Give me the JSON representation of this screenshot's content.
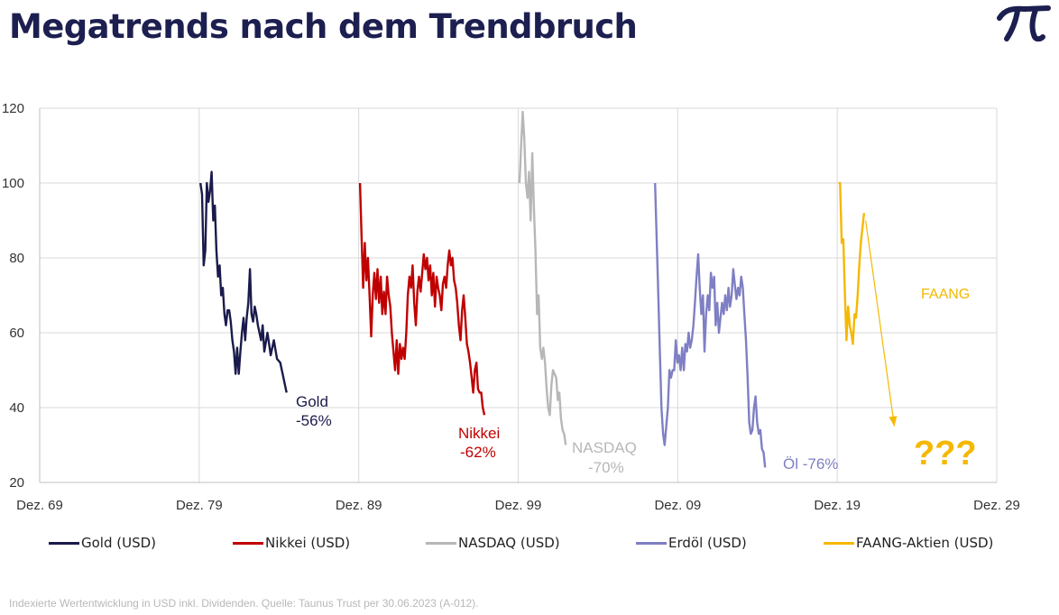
{
  "header": {
    "title": "Megatrends nach dem Trendbruch",
    "logo_icon": "pi-logo-icon",
    "logo_color": "#1c1f4f"
  },
  "chart_data": {
    "type": "line",
    "title": "",
    "xlabel": "",
    "ylabel": "",
    "x_ticks": [
      "Dez. 69",
      "Dez. 79",
      "Dez. 89",
      "Dez. 99",
      "Dez. 09",
      "Dez. 19",
      "Dez. 29"
    ],
    "xlim": [
      1969.92,
      2029.92
    ],
    "y_ticks": [
      20,
      40,
      60,
      80,
      100,
      120
    ],
    "ylim": [
      20,
      120
    ],
    "grid": true,
    "legend_position": "bottom",
    "series": [
      {
        "name": "Gold (USD)",
        "color": "#1a1b4b",
        "points": [
          [
            1980.0,
            100
          ],
          [
            1980.1,
            97
          ],
          [
            1980.2,
            78
          ],
          [
            1980.3,
            82
          ],
          [
            1980.4,
            100
          ],
          [
            1980.5,
            95
          ],
          [
            1980.6,
            98
          ],
          [
            1980.7,
            103
          ],
          [
            1980.8,
            90
          ],
          [
            1980.9,
            94
          ],
          [
            1981.0,
            82
          ],
          [
            1981.1,
            75
          ],
          [
            1981.2,
            78
          ],
          [
            1981.3,
            70
          ],
          [
            1981.4,
            72
          ],
          [
            1981.5,
            65
          ],
          [
            1981.6,
            62
          ],
          [
            1981.7,
            66
          ],
          [
            1981.8,
            66
          ],
          [
            1981.9,
            63
          ],
          [
            1982.0,
            58
          ],
          [
            1982.1,
            55
          ],
          [
            1982.2,
            49
          ],
          [
            1982.3,
            56
          ],
          [
            1982.4,
            49
          ],
          [
            1982.5,
            55
          ],
          [
            1982.6,
            60
          ],
          [
            1982.7,
            64
          ],
          [
            1982.8,
            58
          ],
          [
            1982.9,
            64
          ],
          [
            1983.0,
            68
          ],
          [
            1983.1,
            77
          ],
          [
            1983.2,
            65
          ],
          [
            1983.3,
            63
          ],
          [
            1983.4,
            67
          ],
          [
            1983.5,
            65
          ],
          [
            1983.6,
            62
          ],
          [
            1983.8,
            58
          ],
          [
            1983.9,
            62
          ],
          [
            1984.0,
            55
          ],
          [
            1984.2,
            60
          ],
          [
            1984.4,
            54
          ],
          [
            1984.6,
            58
          ],
          [
            1984.8,
            53
          ],
          [
            1985.0,
            52
          ],
          [
            1985.2,
            48
          ],
          [
            1985.4,
            44
          ]
        ]
      },
      {
        "name": "Nikkei (USD)",
        "color": "#c00000",
        "points": [
          [
            1990.0,
            100
          ],
          [
            1990.1,
            86
          ],
          [
            1990.2,
            72
          ],
          [
            1990.3,
            84
          ],
          [
            1990.4,
            74
          ],
          [
            1990.5,
            80
          ],
          [
            1990.6,
            70
          ],
          [
            1990.7,
            59
          ],
          [
            1990.8,
            70
          ],
          [
            1990.9,
            76
          ],
          [
            1991.0,
            69
          ],
          [
            1991.1,
            77
          ],
          [
            1991.2,
            68
          ],
          [
            1991.3,
            75
          ],
          [
            1991.4,
            65
          ],
          [
            1991.5,
            71
          ],
          [
            1991.6,
            65
          ],
          [
            1991.7,
            75
          ],
          [
            1991.8,
            70
          ],
          [
            1991.9,
            67
          ],
          [
            1992.0,
            60
          ],
          [
            1992.1,
            55
          ],
          [
            1992.2,
            50
          ],
          [
            1992.3,
            58
          ],
          [
            1992.4,
            49
          ],
          [
            1992.5,
            57
          ],
          [
            1992.6,
            53
          ],
          [
            1992.7,
            56
          ],
          [
            1992.8,
            53
          ],
          [
            1992.9,
            60
          ],
          [
            1993.0,
            70
          ],
          [
            1993.1,
            75
          ],
          [
            1993.2,
            72
          ],
          [
            1993.3,
            78
          ],
          [
            1993.4,
            68
          ],
          [
            1993.5,
            62
          ],
          [
            1993.6,
            71
          ],
          [
            1993.7,
            75
          ],
          [
            1993.8,
            71
          ],
          [
            1994.0,
            81
          ],
          [
            1994.1,
            77
          ],
          [
            1994.2,
            80
          ],
          [
            1994.3,
            74
          ],
          [
            1994.4,
            78
          ],
          [
            1994.5,
            70
          ],
          [
            1994.6,
            76
          ],
          [
            1994.7,
            67
          ],
          [
            1994.8,
            75
          ],
          [
            1994.9,
            72
          ],
          [
            1995.0,
            70
          ],
          [
            1995.1,
            66
          ],
          [
            1995.2,
            73
          ],
          [
            1995.3,
            75
          ],
          [
            1995.4,
            72
          ],
          [
            1995.5,
            78
          ],
          [
            1995.6,
            82
          ],
          [
            1995.7,
            78
          ],
          [
            1995.8,
            80
          ],
          [
            1995.9,
            74
          ],
          [
            1996.0,
            72
          ],
          [
            1996.1,
            68
          ],
          [
            1996.2,
            62
          ],
          [
            1996.3,
            58
          ],
          [
            1996.4,
            66
          ],
          [
            1996.5,
            70
          ],
          [
            1996.6,
            64
          ],
          [
            1996.7,
            57
          ],
          [
            1996.8,
            55
          ],
          [
            1996.9,
            52
          ],
          [
            1997.0,
            48
          ],
          [
            1997.1,
            44
          ],
          [
            1997.2,
            50
          ],
          [
            1997.3,
            52
          ],
          [
            1997.4,
            45
          ],
          [
            1997.5,
            44
          ],
          [
            1997.6,
            44
          ],
          [
            1997.7,
            40
          ],
          [
            1997.8,
            38
          ]
        ]
      },
      {
        "name": "NASDAQ (USD)",
        "color": "#b7b7b7",
        "points": [
          [
            2000.0,
            100
          ],
          [
            2000.1,
            110
          ],
          [
            2000.2,
            119
          ],
          [
            2000.3,
            112
          ],
          [
            2000.4,
            100
          ],
          [
            2000.5,
            96
          ],
          [
            2000.6,
            103
          ],
          [
            2000.7,
            90
          ],
          [
            2000.8,
            108
          ],
          [
            2000.9,
            94
          ],
          [
            2001.0,
            82
          ],
          [
            2001.1,
            65
          ],
          [
            2001.2,
            70
          ],
          [
            2001.3,
            56
          ],
          [
            2001.4,
            53
          ],
          [
            2001.5,
            56
          ],
          [
            2001.6,
            52
          ],
          [
            2001.7,
            45
          ],
          [
            2001.8,
            40
          ],
          [
            2001.9,
            38
          ],
          [
            2002.0,
            46
          ],
          [
            2002.1,
            50
          ],
          [
            2002.2,
            49
          ],
          [
            2002.3,
            48
          ],
          [
            2002.4,
            42
          ],
          [
            2002.5,
            44
          ],
          [
            2002.6,
            37
          ],
          [
            2002.7,
            34
          ],
          [
            2002.8,
            33
          ],
          [
            2002.9,
            30
          ]
        ]
      },
      {
        "name": "Erdöl (USD)",
        "color": "#7f7fc4",
        "points": [
          [
            2008.5,
            100
          ],
          [
            2008.6,
            85
          ],
          [
            2008.7,
            70
          ],
          [
            2008.8,
            55
          ],
          [
            2008.9,
            40
          ],
          [
            2009.0,
            33
          ],
          [
            2009.1,
            30
          ],
          [
            2009.2,
            35
          ],
          [
            2009.3,
            40
          ],
          [
            2009.4,
            50
          ],
          [
            2009.5,
            48
          ],
          [
            2009.6,
            50
          ],
          [
            2009.7,
            50
          ],
          [
            2009.8,
            58
          ],
          [
            2009.9,
            52
          ],
          [
            2010.0,
            54
          ],
          [
            2010.1,
            50
          ],
          [
            2010.2,
            56
          ],
          [
            2010.3,
            50
          ],
          [
            2010.4,
            57
          ],
          [
            2010.5,
            55
          ],
          [
            2010.6,
            60
          ],
          [
            2010.7,
            56
          ],
          [
            2010.8,
            58
          ],
          [
            2010.9,
            62
          ],
          [
            2011.0,
            68
          ],
          [
            2011.1,
            75
          ],
          [
            2011.2,
            81
          ],
          [
            2011.3,
            72
          ],
          [
            2011.4,
            65
          ],
          [
            2011.5,
            70
          ],
          [
            2011.6,
            55
          ],
          [
            2011.7,
            65
          ],
          [
            2011.8,
            70
          ],
          [
            2011.9,
            66
          ],
          [
            2012.0,
            76
          ],
          [
            2012.1,
            72
          ],
          [
            2012.2,
            75
          ],
          [
            2012.3,
            62
          ],
          [
            2012.4,
            68
          ],
          [
            2012.5,
            60
          ],
          [
            2012.6,
            64
          ],
          [
            2012.7,
            68
          ],
          [
            2012.8,
            65
          ],
          [
            2012.9,
            70
          ],
          [
            2013.0,
            66
          ],
          [
            2013.1,
            72
          ],
          [
            2013.2,
            67
          ],
          [
            2013.3,
            70
          ],
          [
            2013.4,
            77
          ],
          [
            2013.5,
            73
          ],
          [
            2013.6,
            69
          ],
          [
            2013.7,
            72
          ],
          [
            2013.8,
            70
          ],
          [
            2013.9,
            75
          ],
          [
            2014.0,
            72
          ],
          [
            2014.1,
            65
          ],
          [
            2014.2,
            58
          ],
          [
            2014.3,
            48
          ],
          [
            2014.4,
            36
          ],
          [
            2014.5,
            33
          ],
          [
            2014.6,
            34
          ],
          [
            2014.7,
            40
          ],
          [
            2014.8,
            43
          ],
          [
            2014.9,
            36
          ],
          [
            2015.0,
            33
          ],
          [
            2015.1,
            34
          ],
          [
            2015.2,
            29
          ],
          [
            2015.3,
            28
          ],
          [
            2015.4,
            24
          ]
        ]
      },
      {
        "name": "FAANG-Aktien (USD)",
        "color": "#f5b800",
        "points": [
          [
            2020.0,
            100
          ],
          [
            2020.1,
            100
          ],
          [
            2020.2,
            84
          ],
          [
            2020.3,
            85
          ],
          [
            2020.4,
            70
          ],
          [
            2020.5,
            58
          ],
          [
            2020.6,
            67
          ],
          [
            2020.7,
            62
          ],
          [
            2020.8,
            60
          ],
          [
            2020.9,
            57
          ],
          [
            2021.0,
            65
          ],
          [
            2021.1,
            64
          ],
          [
            2021.2,
            70
          ],
          [
            2021.3,
            78
          ],
          [
            2021.4,
            84
          ],
          [
            2021.5,
            88
          ],
          [
            2021.6,
            92
          ]
        ]
      }
    ],
    "annotations": [
      {
        "text": "Gold",
        "color": "#1a1b4b"
      },
      {
        "text": "-56%",
        "color": "#1a1b4b"
      },
      {
        "text": "Nikkei",
        "color": "#c00000"
      },
      {
        "text": "-62%",
        "color": "#c00000"
      },
      {
        "text": "NASDAQ",
        "color": "#b7b7b7"
      },
      {
        "text": "-70%",
        "color": "#b7b7b7"
      },
      {
        "text": "Öl -76%",
        "color": "#7f7fc4"
      },
      {
        "text": "FAANG",
        "color": "#f5b800"
      },
      {
        "text": "???",
        "color": "#f5b800"
      }
    ],
    "arrow": {
      "from": [
        2021.7,
        90
      ],
      "to": [
        2023.5,
        35
      ],
      "color": "#f5b800"
    }
  },
  "footnote": "Indexierte Wertentwicklung in USD inkl. Dividenden. Quelle: Taunus Trust per 30.06.2023 (A-012)."
}
